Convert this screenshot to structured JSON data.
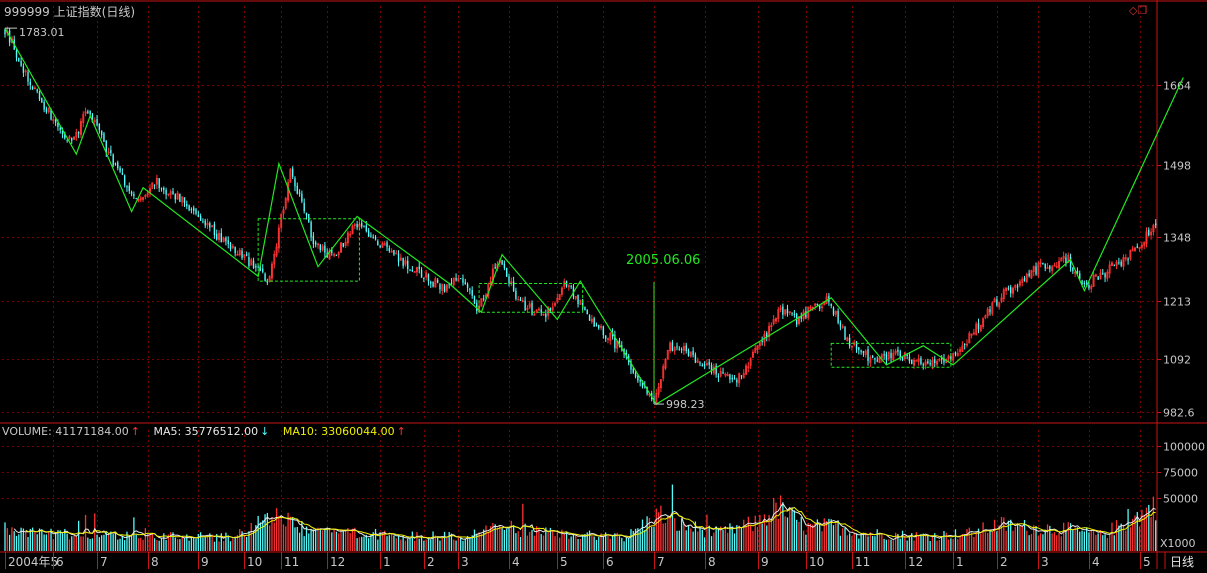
{
  "header": {
    "code": "999999",
    "name": "上证指数",
    "period": "(日线)"
  },
  "window_icons": [
    "diamond-icon",
    "restore-window-icon"
  ],
  "chart_data": [
    {
      "type": "candlestick",
      "title": "999999 上证指数(日线)",
      "y_ticks": [
        "1664",
        "1498",
        "1348",
        "1213",
        "1092",
        "982.6"
      ],
      "y_tick_values": [
        1664,
        1498,
        1348,
        1213,
        1092,
        982.6
      ],
      "ylim": [
        965,
        1800
      ],
      "x_month_labels": [
        "2004年5",
        "6",
        "7",
        "8",
        "9",
        "10",
        "11",
        "12",
        "1",
        "2",
        "3",
        "4",
        "5",
        "6",
        "7",
        "8",
        "9",
        "10",
        "11",
        "12",
        "1",
        "2",
        "3",
        "4",
        "5"
      ],
      "bars": 501,
      "price_path": [
        [
          0,
          1783.01
        ],
        [
          6,
          1720
        ],
        [
          14,
          1640
        ],
        [
          22,
          1590
        ],
        [
          29,
          1540
        ],
        [
          36,
          1615
        ],
        [
          44,
          1530
        ],
        [
          52,
          1460
        ],
        [
          58,
          1420
        ],
        [
          64,
          1465
        ],
        [
          72,
          1440
        ],
        [
          80,
          1410
        ],
        [
          90,
          1360
        ],
        [
          100,
          1320
        ],
        [
          110,
          1280
        ],
        [
          115,
          1255
        ],
        [
          124,
          1490
        ],
        [
          134,
          1340
        ],
        [
          143,
          1300
        ],
        [
          152,
          1380
        ],
        [
          162,
          1340
        ],
        [
          172,
          1300
        ],
        [
          182,
          1265
        ],
        [
          191,
          1240
        ],
        [
          198,
          1260
        ],
        [
          206,
          1195
        ],
        [
          214,
          1300
        ],
        [
          224,
          1210
        ],
        [
          234,
          1180
        ],
        [
          244,
          1250
        ],
        [
          254,
          1180
        ],
        [
          266,
          1120
        ],
        [
          276,
          1040
        ],
        [
          282,
          998.23
        ],
        [
          288,
          1120
        ],
        [
          296,
          1110
        ],
        [
          302,
          1080
        ],
        [
          310,
          1060
        ],
        [
          318,
          1050
        ],
        [
          328,
          1120
        ],
        [
          336,
          1190
        ],
        [
          344,
          1175
        ],
        [
          352,
          1200
        ],
        [
          358,
          1215
        ],
        [
          366,
          1130
        ],
        [
          376,
          1090
        ],
        [
          386,
          1100
        ],
        [
          396,
          1090
        ],
        [
          408,
          1080
        ],
        [
          418,
          1130
        ],
        [
          428,
          1200
        ],
        [
          438,
          1245
        ],
        [
          448,
          1280
        ],
        [
          462,
          1300
        ],
        [
          468,
          1240
        ],
        [
          480,
          1280
        ],
        [
          492,
          1320
        ],
        [
          502,
          1390
        ],
        [
          508,
          1520
        ],
        [
          512,
          1680
        ]
      ],
      "annotations": {
        "high_label": "1783.01",
        "low_label": "998.23",
        "date_label": "2005.06.06"
      },
      "zigzag": [
        [
          0,
          1783
        ],
        [
          31,
          1520
        ],
        [
          37,
          1600
        ],
        [
          55,
          1400
        ],
        [
          60,
          1450
        ],
        [
          110,
          1265
        ],
        [
          119,
          1500
        ],
        [
          136,
          1285
        ],
        [
          153,
          1390
        ],
        [
          193,
          1250
        ],
        [
          207,
          1190
        ],
        [
          216,
          1310
        ],
        [
          240,
          1175
        ],
        [
          250,
          1255
        ],
        [
          283,
          998
        ],
        [
          359,
          1220
        ],
        [
          383,
          1080
        ],
        [
          399,
          1120
        ],
        [
          412,
          1080
        ],
        [
          463,
          1300
        ],
        [
          469,
          1235
        ],
        [
          512,
          1680
        ]
      ],
      "boxes": [
        [
          110,
          1255,
          154,
          1385
        ],
        [
          206,
          1190,
          251,
          1250
        ],
        [
          359,
          1075,
          411,
          1125
        ]
      ]
    },
    {
      "type": "bar",
      "title": "VOLUME",
      "y_ticks": [
        "100000",
        "75000",
        "50000"
      ],
      "y_tick_values": [
        100000,
        75000,
        50000
      ],
      "ylim": [
        0,
        110000
      ],
      "unit_label": "X1000",
      "volume_path": [
        [
          0,
          22000
        ],
        [
          20,
          16000
        ],
        [
          60,
          14000
        ],
        [
          100,
          13000
        ],
        [
          112,
          28000
        ],
        [
          118,
          38000
        ],
        [
          126,
          22000
        ],
        [
          160,
          16000
        ],
        [
          200,
          13000
        ],
        [
          214,
          24000
        ],
        [
          232,
          17000
        ],
        [
          270,
          13000
        ],
        [
          284,
          35000
        ],
        [
          292,
          25000
        ],
        [
          310,
          17000
        ],
        [
          326,
          26000
        ],
        [
          336,
          42000
        ],
        [
          348,
          22000
        ],
        [
          360,
          24000
        ],
        [
          372,
          17000
        ],
        [
          400,
          14000
        ],
        [
          420,
          17000
        ],
        [
          432,
          25000
        ],
        [
          446,
          22000
        ],
        [
          460,
          21000
        ],
        [
          476,
          15000
        ],
        [
          492,
          32000
        ],
        [
          506,
          52000
        ],
        [
          512,
          98000
        ]
      ]
    }
  ],
  "indicators": {
    "volume": "VOLUME: 41171184.00",
    "ma5": "MA5: 35776512.00",
    "ma10": "MA10: 33060044.00",
    "unit": "X1000"
  },
  "footer": {
    "period_tab": "日线"
  },
  "colors": {
    "up": "#ff3232",
    "down": "#54fcfc",
    "zigzag": "#22e822",
    "grid": "#7a0000",
    "axis": "#c81414",
    "text": "#c8c8c8"
  }
}
